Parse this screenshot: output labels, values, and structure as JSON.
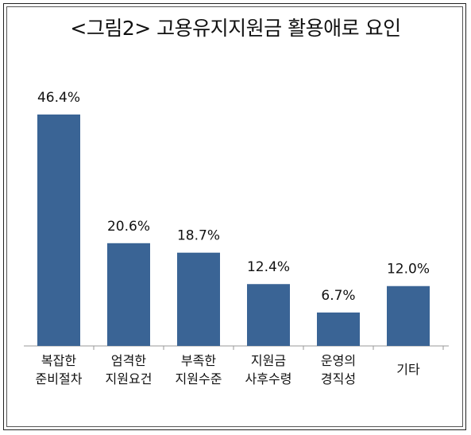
{
  "chart_data": {
    "type": "bar",
    "title": "<그림2> 고용유지지원금 활용애로 요인",
    "xlabel": "",
    "ylabel": "",
    "ylim": [
      0,
      50
    ],
    "grid": false,
    "legend": "none",
    "categories": [
      [
        "복잡한",
        "준비절차"
      ],
      [
        "엄격한",
        "지원요건"
      ],
      [
        "부족한",
        "지원수준"
      ],
      [
        "지원금",
        "사후수령"
      ],
      [
        "운영의",
        "경직성"
      ],
      [
        "기타"
      ]
    ],
    "values": [
      46.4,
      20.6,
      18.7,
      12.4,
      6.7,
      12.0
    ],
    "value_labels": [
      "46.4%",
      "20.6%",
      "18.7%",
      "12.4%",
      "6.7%",
      "12.0%"
    ],
    "bar_color": "#3A6495"
  }
}
